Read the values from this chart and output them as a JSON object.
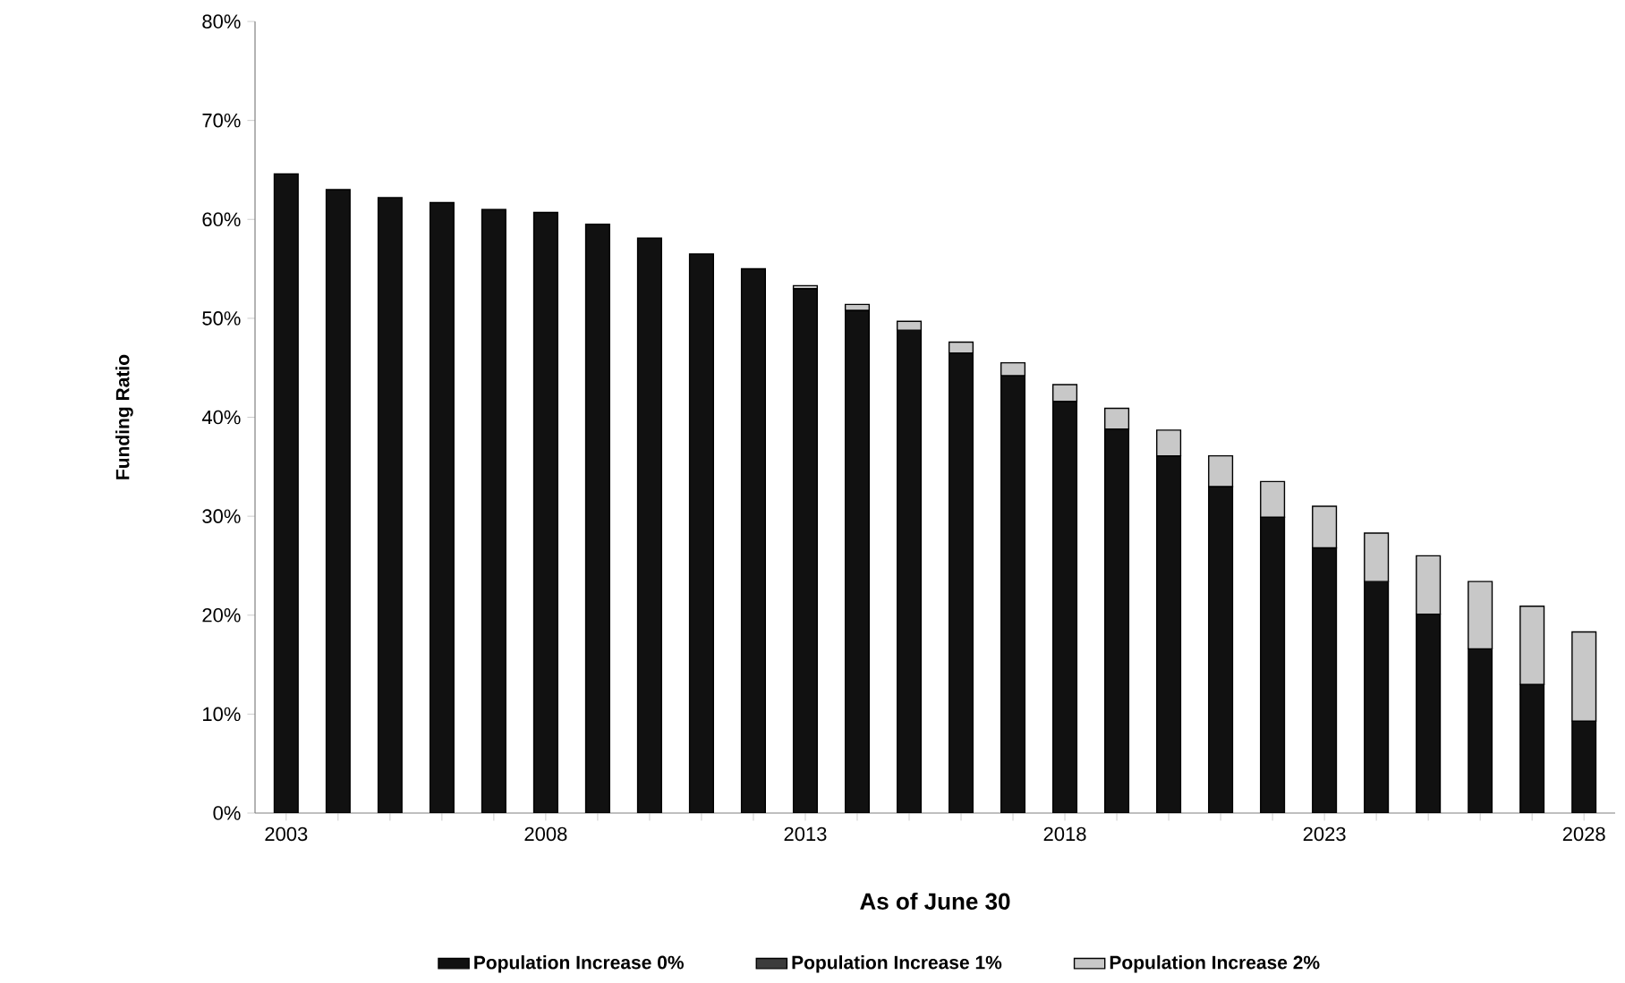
{
  "chart_data": {
    "type": "bar",
    "stacked": true,
    "xlabel": "As of June 30",
    "ylabel": "Funding Ratio",
    "legend": "bottom",
    "categories": [
      "2003",
      null,
      null,
      null,
      null,
      "2008",
      null,
      null,
      null,
      null,
      "2013",
      null,
      null,
      null,
      null,
      "2018",
      null,
      null,
      null,
      null,
      "2023",
      null,
      null,
      null,
      null,
      "2028"
    ],
    "ylim": [
      0,
      80
    ],
    "yticks": [
      {
        "value": 0,
        "label": "0%"
      },
      {
        "value": 10,
        "label": "10%"
      },
      {
        "value": 20,
        "label": "20%"
      },
      {
        "value": 30,
        "label": "30%"
      },
      {
        "value": 40,
        "label": "40%"
      },
      {
        "value": 50,
        "label": "50%"
      },
      {
        "value": 60,
        "label": "60%"
      },
      {
        "value": 70,
        "label": "70%"
      },
      {
        "value": 80,
        "label": "80%"
      }
    ],
    "series": [
      {
        "name": "Population Increase 0%",
        "color": "#111111",
        "values": [
          64.6,
          63.0,
          62.2,
          61.7,
          61.0,
          60.7,
          59.5,
          58.1,
          56.5,
          55.0,
          53.0,
          50.8,
          48.8,
          46.5,
          44.2,
          41.6,
          38.8,
          36.1,
          33.0,
          29.9,
          26.8,
          23.4,
          20.1,
          16.6,
          13.0,
          9.3
        ]
      },
      {
        "name": "Population Increase 1%",
        "color": "#3c3c3c",
        "values": [
          null,
          null,
          null,
          null,
          null,
          null,
          null,
          null,
          null,
          null,
          null,
          null,
          null,
          null,
          null,
          null,
          null,
          null,
          null,
          null,
          null,
          null,
          null,
          null,
          null,
          null
        ]
      },
      {
        "name": "Population Increase 2%",
        "color": "#c8c8c8",
        "values": [
          null,
          null,
          null,
          null,
          null,
          null,
          null,
          null,
          null,
          null,
          0.3,
          0.6,
          0.9,
          1.1,
          1.3,
          1.7,
          2.1,
          2.6,
          3.1,
          3.6,
          4.2,
          4.9,
          5.9,
          6.8,
          7.9,
          9.0
        ]
      }
    ]
  }
}
